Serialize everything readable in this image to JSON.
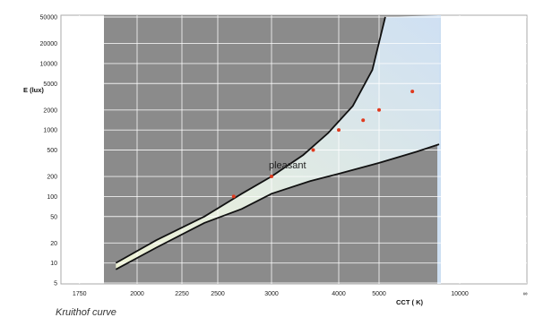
{
  "caption": "Kruithof curve",
  "chart_data": {
    "type": "area",
    "xlabel": "CCT ( K)",
    "ylabel": "E (lux)",
    "x_ticks": [
      1750,
      2000,
      2250,
      2500,
      3000,
      4000,
      5000,
      10000
    ],
    "y_ticks": [
      5,
      10,
      20,
      50,
      100,
      200,
      500,
      1000,
      2000,
      5000,
      10000,
      20000,
      50000
    ],
    "x_scale": "reciprocal",
    "y_scale": "log",
    "xlim": [
      1600,
      10000
    ],
    "ylim": [
      5,
      50000
    ],
    "x_axis_end_label": "∞",
    "region_label": "pleasant",
    "upper_boundary": {
      "x": [
        1900,
        2100,
        2400,
        2700,
        3000,
        3400,
        3800,
        4300,
        4800,
        5200
      ],
      "y": [
        10,
        22,
        50,
        110,
        200,
        420,
        900,
        2300,
        8000,
        50000
      ]
    },
    "lower_boundary": {
      "x": [
        1900,
        2100,
        2400,
        2700,
        3000,
        3500,
        4000,
        5000,
        6500,
        8000
      ],
      "y": [
        8,
        17,
        40,
        65,
        110,
        170,
        220,
        320,
        470,
        610
      ]
    },
    "points": {
      "x": [
        2630,
        3000,
        3550,
        4000,
        4550,
        5000,
        6300
      ],
      "y": [
        100,
        200,
        500,
        1000,
        1400,
        2000,
        3800
      ]
    },
    "colors": {
      "outer_region": "#8b8b8b",
      "pleasant_region_low": "#eef2d6",
      "pleasant_region_high": "#cfe0f3",
      "right_band": "#cddff2",
      "grid": "#ffffff",
      "boundary": "#111111",
      "points": "#e03a1e",
      "frame": "#aaaaaa"
    }
  }
}
